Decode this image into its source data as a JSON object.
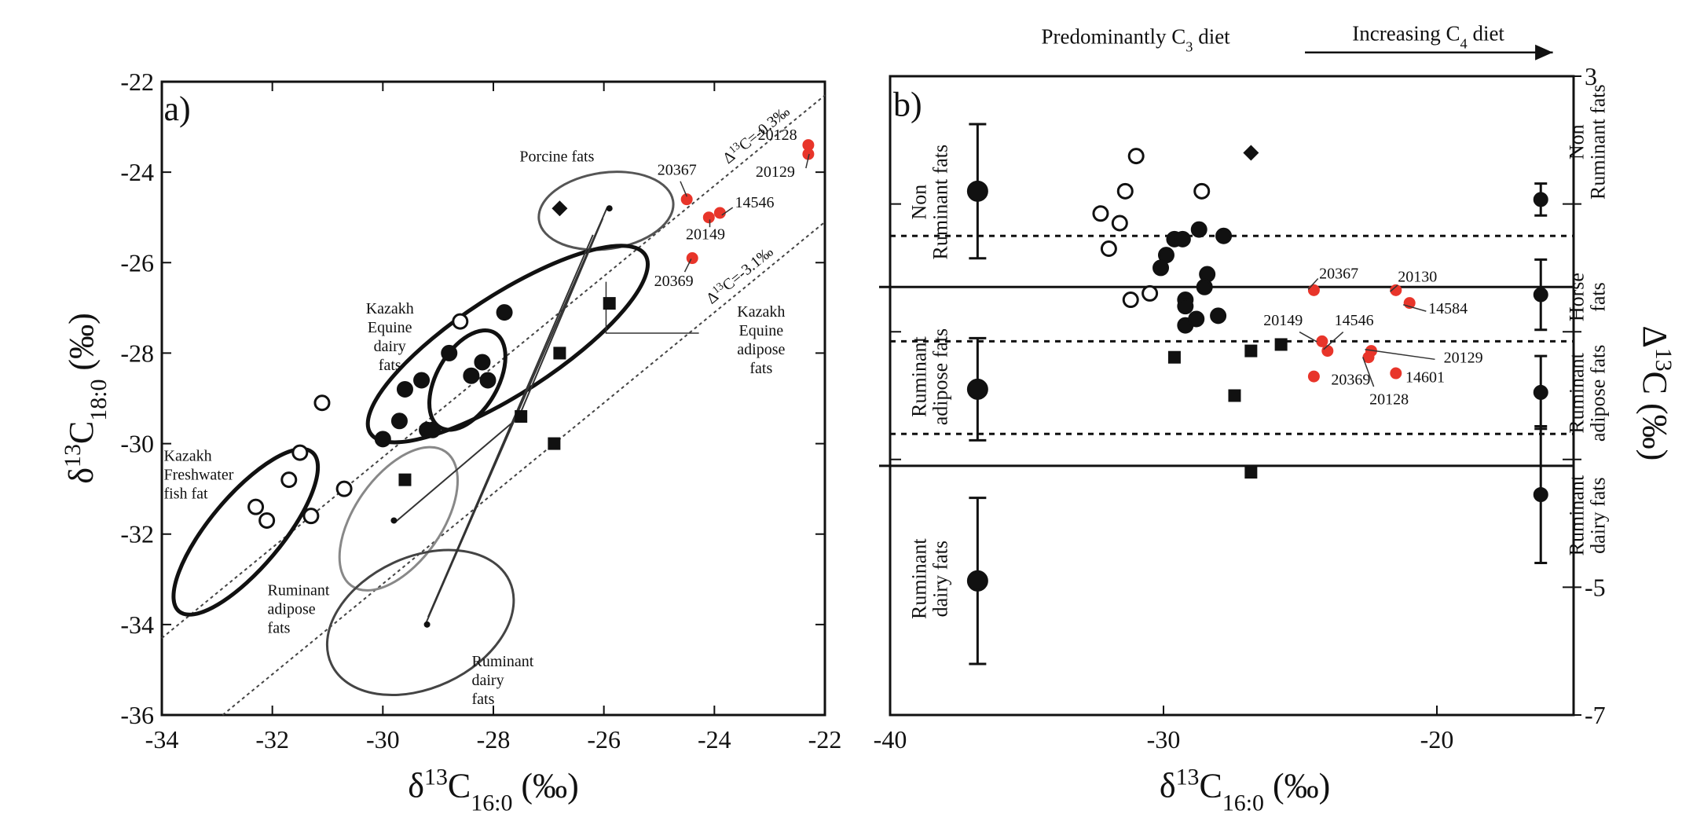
{
  "chart_data": [
    {
      "type": "scatter",
      "panel_label": "a)",
      "xlabel": {
        "runs": [
          "δ",
          {
            "text": "13",
            "shift": "sup"
          },
          "C",
          {
            "text": "16:0",
            "shift": "sub"
          },
          " (‰)"
        ]
      },
      "ylabel": {
        "runs": [
          "δ",
          {
            "text": "13",
            "shift": "sup"
          },
          "C",
          {
            "text": "18:0",
            "shift": "sub"
          },
          " (‰)"
        ]
      },
      "xlim": [
        -34,
        -22
      ],
      "ylim": [
        -36,
        -22
      ],
      "xticks": [
        -34,
        -32,
        -30,
        -28,
        -26,
        -24,
        -22
      ],
      "yticks": [
        -36,
        -34,
        -32,
        -30,
        -28,
        -26,
        -24,
        -22
      ],
      "ref_lines": [
        {
          "offset": -0.3,
          "runs": [
            "Δ",
            {
              "text": "13",
              "shift": "sup"
            },
            "C=-0.3‰"
          ]
        },
        {
          "offset": -3.1,
          "runs": [
            "Δ",
            {
              "text": "13",
              "shift": "sup"
            },
            "C=-3.1‰"
          ]
        }
      ],
      "series": [
        {
          "marker": "circle",
          "filled": false,
          "color": "#111",
          "x": [
            -28.6,
            -31.1,
            -31.5,
            -31.7,
            -30.7,
            -31.3,
            -32.3,
            -32.1
          ],
          "y": [
            -27.3,
            -29.1,
            -30.2,
            -30.8,
            -31.0,
            -31.6,
            -31.4,
            -31.7
          ]
        },
        {
          "marker": "circle",
          "filled": true,
          "color": "#111",
          "x": [
            -27.8,
            -28.8,
            -28.2,
            -28.4,
            -28.1,
            -29.6,
            -29.3,
            -29.7,
            -30.0,
            -29.2,
            -29.1
          ],
          "y": [
            -27.1,
            -28.0,
            -28.2,
            -28.5,
            -28.6,
            -28.8,
            -28.6,
            -29.5,
            -29.9,
            -29.7,
            -29.7
          ]
        },
        {
          "marker": "square",
          "filled": true,
          "color": "#111",
          "x": [
            -25.9,
            -26.8,
            -27.5,
            -26.9,
            -29.6
          ],
          "y": [
            -26.9,
            -28.0,
            -29.4,
            -30.0,
            -30.8
          ]
        },
        {
          "marker": "diamond",
          "filled": true,
          "color": "#111",
          "x": [
            -26.8
          ],
          "y": [
            -24.8
          ]
        },
        {
          "marker": "dot",
          "filled": true,
          "color": "#111",
          "x": [
            -25.9,
            -29.8,
            -29.2
          ],
          "y": [
            -24.8,
            -31.7,
            -34.0
          ]
        },
        {
          "marker": "circle",
          "filled": true,
          "color": "#e8352a",
          "x": [
            -24.5,
            -24.1,
            -23.9,
            -24.4,
            -22.3,
            -22.3
          ],
          "y": [
            -24.6,
            -25.0,
            -24.9,
            -25.9,
            -23.4,
            -23.6
          ],
          "labels": [
            "20367",
            "20149",
            "14546",
            "20369",
            "20128",
            "20129"
          ]
        }
      ],
      "annotations": [
        {
          "lines": [
            "Porcine fats"
          ]
        },
        {
          "lines": [
            "Kazakh",
            "Equine",
            "dairy",
            "fats"
          ]
        },
        {
          "lines": [
            "Kazakh",
            "Equine",
            "adipose",
            "fats"
          ]
        },
        {
          "lines": [
            "Kazakh",
            "Freshwater",
            "fish fat"
          ]
        },
        {
          "lines": [
            "Ruminant",
            "adipose",
            "fats"
          ]
        },
        {
          "lines": [
            "Ruminant",
            "dairy",
            "fats"
          ]
        }
      ]
    },
    {
      "type": "scatter",
      "panel_label": "b)",
      "xlabel": {
        "runs": [
          "δ",
          {
            "text": "13",
            "shift": "sup"
          },
          "C",
          {
            "text": "16:0",
            "shift": "sub"
          },
          " (‰)"
        ]
      },
      "ylabel": {
        "runs": [
          "Δ",
          {
            "text": "13",
            "shift": "sup"
          },
          "C (‰)"
        ]
      },
      "yaxis_position": "right",
      "xlim": [
        -40,
        -15
      ],
      "ylim": [
        -7,
        3
      ],
      "xticks": [
        -40,
        -30,
        -20
      ],
      "yticks": [
        3,
        -5,
        -7
      ],
      "minor_yticks": [
        1,
        -1,
        -3
      ],
      "top_labels": [
        {
          "runs": [
            "Predominantly C",
            {
              "text": "3",
              "shift": "sub"
            },
            " diet"
          ]
        },
        {
          "runs": [
            "Increasing C",
            {
              "text": "4",
              "shift": "sub"
            },
            " diet"
          ]
        }
      ],
      "hlines": [
        {
          "value": -0.3,
          "style": "solid"
        },
        {
          "value": -3.1,
          "style": "solid"
        },
        {
          "value": 0.5,
          "style": "dashed"
        },
        {
          "value": -1.15,
          "style": "dashed"
        },
        {
          "value": -2.6,
          "style": "dashed"
        }
      ],
      "series": [
        {
          "marker": "circle",
          "filled": false,
          "color": "#111",
          "x": [
            -31.0,
            -32.3,
            -31.6,
            -31.4,
            -32.0,
            -28.6,
            -31.2,
            -30.5
          ],
          "y": [
            1.75,
            0.85,
            0.7,
            1.2,
            0.3,
            1.2,
            -0.5,
            -0.4
          ]
        },
        {
          "marker": "circle",
          "filled": true,
          "color": "#111",
          "x": [
            -29.6,
            -29.3,
            -29.9,
            -30.1,
            -28.7,
            -27.8,
            -28.4,
            -28.5,
            -29.2,
            -29.2,
            -29.2,
            -28.8,
            -28.0
          ],
          "y": [
            0.45,
            0.45,
            0.2,
            0.0,
            0.6,
            0.5,
            -0.1,
            -0.3,
            -0.5,
            -0.6,
            -0.9,
            -0.8,
            -0.75
          ]
        },
        {
          "marker": "square",
          "filled": true,
          "color": "#111",
          "x": [
            -29.6,
            -26.8,
            -25.7,
            -27.4,
            -26.8
          ],
          "y": [
            -1.4,
            -1.3,
            -1.2,
            -2.0,
            -3.2
          ]
        },
        {
          "marker": "diamond",
          "filled": true,
          "color": "#111",
          "x": [
            -26.8
          ],
          "y": [
            1.8
          ]
        },
        {
          "marker": "circle",
          "filled": true,
          "color": "#e8352a",
          "x": [
            -24.5,
            -21.5,
            -21.0,
            -24.2,
            -24.0,
            -22.4,
            -22.5,
            -24.5,
            -21.5
          ],
          "y": [
            -0.35,
            -0.35,
            -0.55,
            -1.15,
            -1.3,
            -1.3,
            -1.4,
            -1.7,
            -1.65
          ],
          "labels": [
            "20367",
            "20130",
            "14584",
            "20149",
            "14546",
            "20129",
            "20128",
            "20369",
            "14601"
          ]
        },
        {
          "marker": "errorbar",
          "filled": true,
          "color": "#111",
          "size": "large",
          "x": [
            -36.8,
            -36.8,
            -36.8
          ],
          "y": [
            1.2,
            -1.9,
            -4.9
          ],
          "err": [
            1.05,
            0.8,
            1.3
          ]
        },
        {
          "marker": "errorbar",
          "filled": true,
          "color": "#111",
          "size": "small",
          "x": [
            -16.2,
            -16.2,
            -16.2,
            -16.2
          ],
          "y": [
            1.07,
            -0.42,
            -1.95,
            -3.55
          ],
          "err": [
            0.25,
            0.55,
            0.57,
            1.07
          ]
        }
      ],
      "group_labels_left": [
        {
          "lines": [
            "Non",
            "Ruminant fats"
          ]
        },
        {
          "lines": [
            "Ruminant",
            "adipose fats"
          ]
        },
        {
          "lines": [
            "Ruminant",
            "dairy fats"
          ]
        }
      ],
      "group_labels_right": [
        {
          "lines": [
            "Non",
            "Ruminant fats"
          ]
        },
        {
          "lines": [
            "Horse",
            "fats"
          ]
        },
        {
          "lines": [
            "Ruminant",
            "adipose fats"
          ]
        },
        {
          "lines": [
            "Ruminant",
            "dairy fats"
          ]
        }
      ]
    }
  ]
}
